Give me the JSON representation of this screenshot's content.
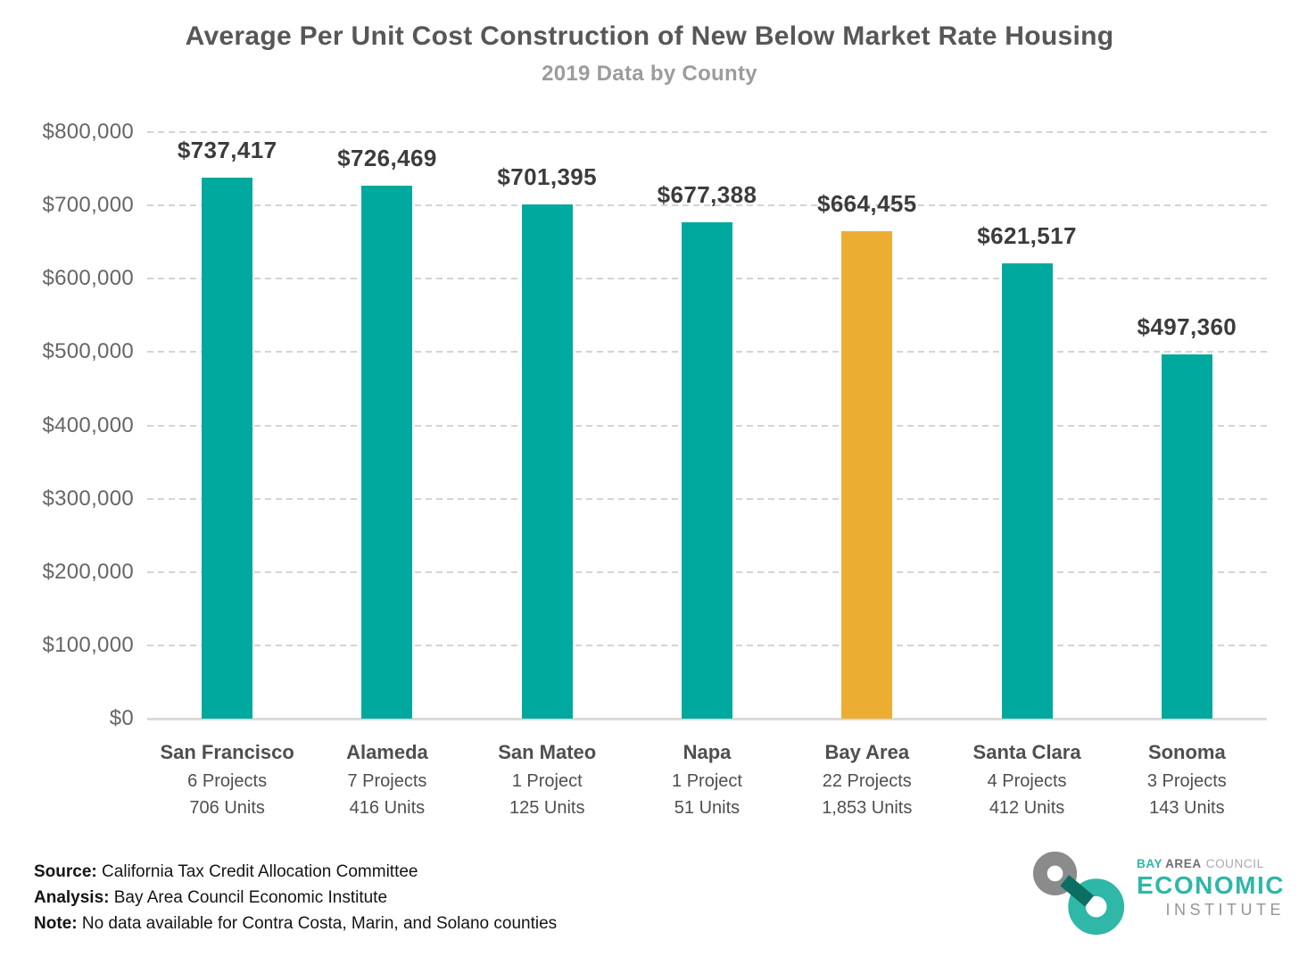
{
  "header": {
    "title": "Average Per Unit Cost Construction of New Below Market Rate Housing",
    "subtitle": "2019 Data by County"
  },
  "chart_data": {
    "type": "bar",
    "title": "Average Per Unit Cost Construction of New Below Market Rate Housing",
    "subtitle": "2019 Data by County",
    "categories": [
      "San Francisco",
      "Alameda",
      "San Mateo",
      "Napa",
      "Bay Area",
      "Santa Clara",
      "Sonoma"
    ],
    "values": [
      737417,
      726469,
      701395,
      677388,
      664455,
      621517,
      497360
    ],
    "value_labels": [
      "$737,417",
      "$726,469",
      "$701,395",
      "$677,388",
      "$664,455",
      "$621,517",
      "$497,360"
    ],
    "projects": [
      "6 Projects",
      "7 Projects",
      "1 Project",
      "1 Project",
      "22 Projects",
      "4 Projects",
      "3 Projects"
    ],
    "units": [
      "706 Units",
      "416 Units",
      "125 Units",
      "51 Units",
      "1,853 Units",
      "412 Units",
      "143 Units"
    ],
    "highlight_index": 4,
    "bar_color": "#00A99D",
    "highlight_color": "#EBAE33",
    "xlabel": "",
    "ylabel": "",
    "ylim": [
      0,
      800000
    ],
    "ytick_step": 100000,
    "grid": "horizontal-dashed",
    "legend": "none",
    "yticks": [
      {
        "value": 800000,
        "label": "$800,000"
      },
      {
        "value": 700000,
        "label": "$700,000"
      },
      {
        "value": 600000,
        "label": "$600,000"
      },
      {
        "value": 500000,
        "label": "$500,000"
      },
      {
        "value": 400000,
        "label": "$400,000"
      },
      {
        "value": 300000,
        "label": "$300,000"
      },
      {
        "value": 200000,
        "label": "$200,000"
      },
      {
        "value": 100000,
        "label": "$100,000"
      },
      {
        "value": 0,
        "label": "$0"
      }
    ]
  },
  "footer": {
    "lines": [
      {
        "label": "Source:",
        "text": " California Tax Credit Allocation Committee"
      },
      {
        "label": "Analysis:",
        "text": " Bay Area Council Economic Institute"
      },
      {
        "label": "Note:",
        "text": " No data available for Contra Costa, Marin, and Solano counties"
      }
    ]
  },
  "logo": {
    "line1_bay": "BAY",
    "line1_area": "AREA",
    "line1_council": "COUNCIL",
    "line2": "ECONOMIC",
    "line3": "INSTITUTE",
    "colors": {
      "teal": "#2FB7A7",
      "gray": "#8B8B8B",
      "dark_overlap": "#0A6E63"
    }
  }
}
